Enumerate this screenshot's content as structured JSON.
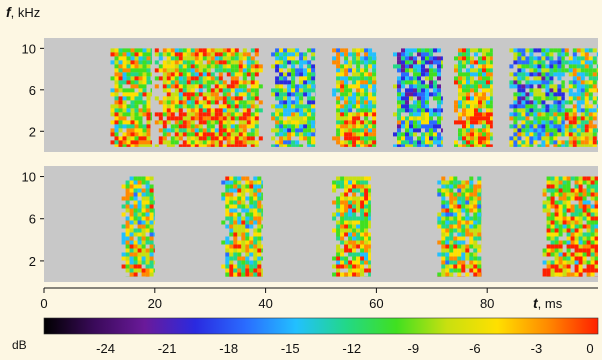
{
  "chart_data": {
    "type": "heatmap",
    "y_axis": {
      "symbol": "f",
      "unit": ", kHz",
      "ticks": [
        2,
        6,
        10
      ],
      "range": [
        0,
        11
      ]
    },
    "x_axis": {
      "symbol": "t",
      "unit": ", ms",
      "ticks": [
        0,
        20,
        40,
        60,
        80
      ],
      "range": [
        0,
        100
      ]
    },
    "panels": [
      {
        "name": "upper",
        "background": "#c8c8c8",
        "segments": [
          {
            "t": [
              12.0,
              19.5
            ],
            "f": [
              0.5,
              10
            ],
            "level": -8
          },
          {
            "t": [
              20.0,
              39.5
            ],
            "f": [
              0.5,
              10
            ],
            "level": -7
          },
          {
            "t": [
              41.0,
              49.0
            ],
            "f": [
              0.5,
              10
            ],
            "level": -13
          },
          {
            "t": [
              52.0,
              60.0
            ],
            "f": [
              0.5,
              10
            ],
            "level": -9
          },
          {
            "t": [
              63.0,
              72.0
            ],
            "f": [
              0.5,
              10
            ],
            "level": -15
          },
          {
            "t": [
              74.0,
              81.0
            ],
            "f": [
              0.5,
              10
            ],
            "level": -8
          },
          {
            "t": [
              84.0,
              94.0
            ],
            "f": [
              0.5,
              10
            ],
            "level": -14
          },
          {
            "t": [
              94.0,
              100.0
            ],
            "f": [
              0.5,
              10
            ],
            "level": -9
          }
        ]
      },
      {
        "name": "lower",
        "background": "#c8c8c8",
        "segments": [
          {
            "t": [
              14.0,
              20.0
            ],
            "f": [
              0.5,
              10
            ],
            "level": -9
          },
          {
            "t": [
              32.0,
              39.5
            ],
            "f": [
              0.5,
              10
            ],
            "level": -9
          },
          {
            "t": [
              52.0,
              59.0
            ],
            "f": [
              0.5,
              10
            ],
            "level": -8
          },
          {
            "t": [
              71.0,
              79.0
            ],
            "f": [
              0.5,
              10
            ],
            "level": -9
          },
          {
            "t": [
              90.0,
              100.0
            ],
            "f": [
              0.5,
              10
            ],
            "level": -7
          }
        ]
      }
    ],
    "colorbar": {
      "label": "dB",
      "range": [
        -27,
        0
      ],
      "ticks": [
        -24,
        -21,
        -18,
        -15,
        -12,
        -9,
        -6,
        -3,
        0
      ],
      "colors": [
        "#000000",
        "#3a0a5a",
        "#6a1a9a",
        "#2a2ae0",
        "#2a6cff",
        "#22c0ff",
        "#22d888",
        "#40e020",
        "#c8e010",
        "#ffe000",
        "#ff8a00",
        "#ff2000"
      ]
    }
  }
}
